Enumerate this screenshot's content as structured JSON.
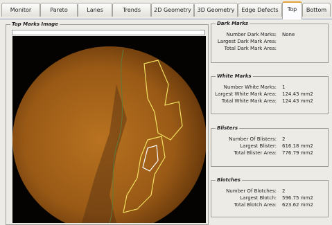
{
  "tabs": [
    "Monitor",
    "Pareto",
    "Lanes",
    "Trends",
    "2D Geometry",
    "3D Geometry",
    "Edge Defects",
    "Top",
    "Bottom"
  ],
  "image_panel": {
    "title": "Top Marks Image"
  },
  "groups": [
    {
      "title": "Dark Marks",
      "rows": [
        {
          "label": "Number Dark Marks:",
          "value": "None"
        },
        {
          "label": "Largest Dark Mark Area:"
        },
        {
          "label": "Total Dark Mark Area:"
        }
      ]
    },
    {
      "title": "White Marks",
      "rows": [
        {
          "label": "Number White Marks:",
          "value": "1"
        },
        {
          "label": "Largest White Mark Area:",
          "value": "124.43 mm2"
        },
        {
          "label": "Total White Mark Area:",
          "value": "124.43 mm2"
        }
      ]
    },
    {
      "title": "Blisters",
      "rows": [
        {
          "label": "Number Of Blisters:",
          "value": "2"
        },
        {
          "label": "Largest Blister:",
          "value": "616.18 mm2"
        },
        {
          "label": "Total Blister Area:",
          "value": "776.79 mm2"
        }
      ]
    },
    {
      "title": "Blotches",
      "rows": [
        {
          "label": "Number Of Blotches:",
          "value": "2"
        },
        {
          "label": "Largest Blotch:",
          "value": "596.75 mm2"
        },
        {
          "label": "Total Blotch Area:",
          "value": "623.62 mm2"
        }
      ]
    }
  ]
}
